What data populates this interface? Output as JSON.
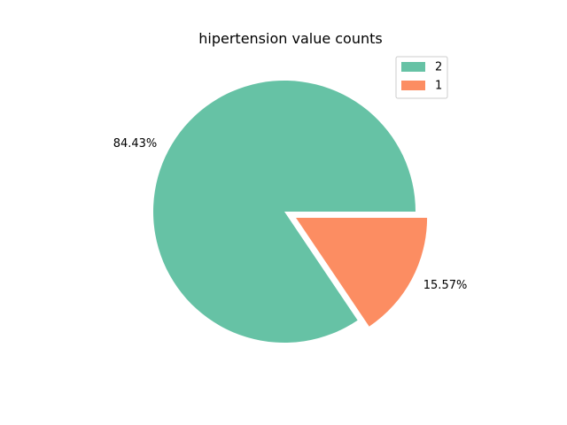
{
  "chart_data": {
    "type": "pie",
    "title": "hipertension value counts",
    "categories": [
      "2",
      "1"
    ],
    "values": [
      84.43,
      15.57
    ],
    "labels": [
      "84.43%",
      "15.57%"
    ],
    "colors": [
      "#66c2a5",
      "#fc8d62"
    ],
    "explode": [
      0,
      0.1
    ],
    "start_angle_deg": 0,
    "legend_position": "top-right"
  }
}
